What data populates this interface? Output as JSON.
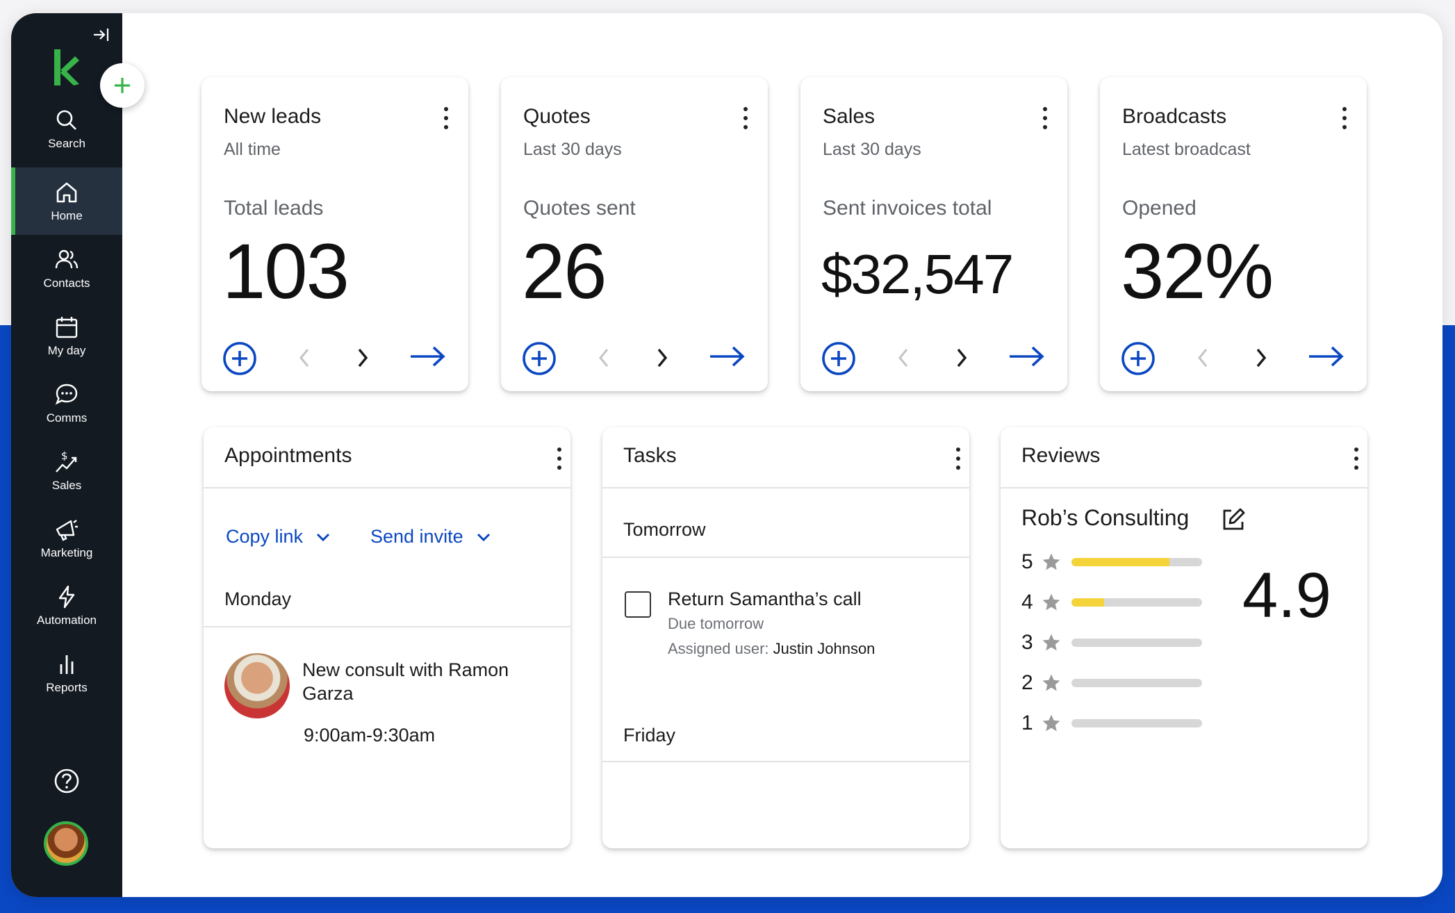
{
  "sidebar": {
    "collapse_icon": "collapse-sidebar-icon",
    "items": [
      {
        "label": "Search",
        "icon": "search-icon"
      },
      {
        "label": "Home",
        "icon": "home-icon",
        "active": true
      },
      {
        "label": "Contacts",
        "icon": "contacts-icon"
      },
      {
        "label": "My day",
        "icon": "calendar-icon"
      },
      {
        "label": "Comms",
        "icon": "chat-icon"
      },
      {
        "label": "Sales",
        "icon": "sales-icon"
      },
      {
        "label": "Marketing",
        "icon": "megaphone-icon"
      },
      {
        "label": "Automation",
        "icon": "lightning-icon"
      },
      {
        "label": "Reports",
        "icon": "bar-chart-icon"
      }
    ]
  },
  "colors": {
    "sidebar_bg": "#131a22",
    "active_accent": "#38b34a",
    "link_blue": "#0a47c2",
    "rating_bar": "#f5d33b"
  },
  "kpis": [
    {
      "title": "New leads",
      "sub": "All time",
      "metric": "Total leads",
      "value": "103"
    },
    {
      "title": "Quotes",
      "sub": "Last 30 days",
      "metric": "Quotes sent",
      "value": "26"
    },
    {
      "title": "Sales",
      "sub": "Last 30 days",
      "metric": "Sent invoices total",
      "value": "$32,547"
    },
    {
      "title": "Broadcasts",
      "sub": "Latest broadcast",
      "metric": "Opened",
      "value": "32%"
    }
  ],
  "appointments": {
    "title": "Appointments",
    "copy_link": "Copy link",
    "send_invite": "Send invite",
    "day": "Monday",
    "item_title": "New consult with Ramon Garza",
    "item_time": "9:00am-9:30am"
  },
  "tasks": {
    "title": "Tasks",
    "day1": "Tomorrow",
    "task_title": "Return Samantha’s call",
    "task_due": "Due tomorrow",
    "assigned_label": "Assigned user:",
    "assigned_name": "Justin Johnson",
    "day2": "Friday"
  },
  "reviews": {
    "title": "Reviews",
    "business": "Rob’s Consulting",
    "average": "4.9",
    "ratings": [
      {
        "stars": "5",
        "fraction": 0.75
      },
      {
        "stars": "4",
        "fraction": 0.25
      },
      {
        "stars": "3",
        "fraction": 0
      },
      {
        "stars": "2",
        "fraction": 0
      },
      {
        "stars": "1",
        "fraction": 0
      }
    ]
  }
}
